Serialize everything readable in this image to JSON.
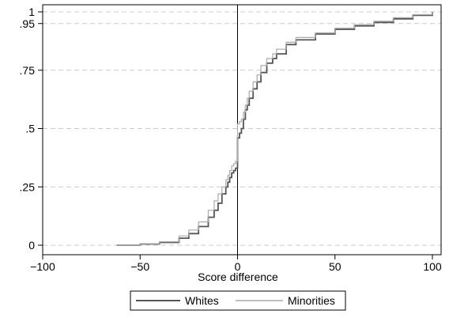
{
  "chart_data": {
    "type": "line",
    "xlabel": "Score difference",
    "ylabel": "",
    "xlim": [
      -100,
      100
    ],
    "ylim": [
      0,
      1
    ],
    "x_ticks": [
      -100,
      -50,
      0,
      50,
      100
    ],
    "x_tick_labels": [
      "−100",
      "−50",
      "0",
      "50",
      "100"
    ],
    "y_ticks": [
      0,
      0.25,
      0.5,
      0.75,
      0.95,
      1
    ],
    "y_tick_labels": [
      "0",
      ".25",
      ".5",
      ".75",
      ".95",
      "1"
    ],
    "grid": "horizontal dashed",
    "reference_line_x": 0,
    "legend_position": "bottom",
    "series": [
      {
        "name": "Whites",
        "color": "#555555",
        "x": [
          -62,
          -50,
          -40,
          -30,
          -25,
          -20,
          -15,
          -12,
          -10,
          -8,
          -6,
          -5,
          -4,
          -3,
          -2,
          -1,
          0,
          0,
          1,
          2,
          3,
          4,
          5,
          6,
          8,
          10,
          12,
          15,
          18,
          20,
          25,
          30,
          40,
          50,
          60,
          70,
          80,
          90,
          100
        ],
        "y": [
          0,
          0.005,
          0.012,
          0.03,
          0.05,
          0.08,
          0.12,
          0.15,
          0.18,
          0.22,
          0.25,
          0.27,
          0.29,
          0.31,
          0.32,
          0.33,
          0.34,
          0.46,
          0.48,
          0.5,
          0.54,
          0.58,
          0.6,
          0.63,
          0.67,
          0.7,
          0.74,
          0.78,
          0.8,
          0.82,
          0.86,
          0.88,
          0.905,
          0.925,
          0.94,
          0.955,
          0.97,
          0.985,
          1
        ]
      },
      {
        "name": "Minorities",
        "color": "#aaaaaa",
        "x": [
          -62,
          -50,
          -40,
          -30,
          -25,
          -20,
          -15,
          -12,
          -10,
          -8,
          -6,
          -5,
          -4,
          -3,
          -2,
          -1,
          0,
          0,
          1,
          2,
          3,
          4,
          5,
          6,
          8,
          10,
          12,
          15,
          18,
          20,
          25,
          30,
          40,
          50,
          60,
          70,
          80,
          90,
          100
        ],
        "y": [
          0,
          0.006,
          0.015,
          0.04,
          0.065,
          0.1,
          0.15,
          0.19,
          0.22,
          0.25,
          0.28,
          0.3,
          0.32,
          0.34,
          0.35,
          0.36,
          0.37,
          0.52,
          0.53,
          0.54,
          0.57,
          0.6,
          0.63,
          0.66,
          0.7,
          0.73,
          0.77,
          0.8,
          0.82,
          0.84,
          0.87,
          0.89,
          0.91,
          0.93,
          0.945,
          0.96,
          0.975,
          0.988,
          1
        ]
      }
    ]
  }
}
